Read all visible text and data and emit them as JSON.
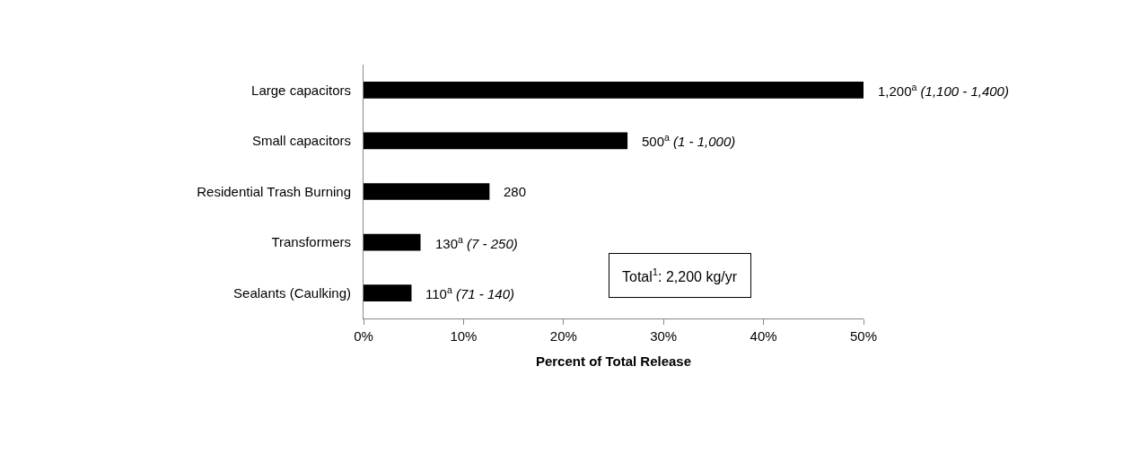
{
  "chart_data": {
    "type": "bar",
    "orientation": "horizontal",
    "categories": [
      "Large capacitors",
      "Small capacitors",
      "Residential Trash Burning",
      "Transformers",
      "Sealants (Caulking)"
    ],
    "values": [
      50.0,
      26.4,
      12.6,
      5.7,
      4.8
    ],
    "color": "#000000",
    "xlabel": "Percent of Total Release",
    "xlim": [
      0,
      50
    ],
    "xticks": [
      {
        "value": 0,
        "label": "0%"
      },
      {
        "value": 10,
        "label": "10%"
      },
      {
        "value": 20,
        "label": "20%"
      },
      {
        "value": 30,
        "label": "30%"
      },
      {
        "value": 40,
        "label": "40%"
      },
      {
        "value": 50,
        "label": "50%"
      }
    ],
    "legend": false,
    "annotations": [
      {
        "text": "1,200$^{a}$ (1,100 - 1,400)",
        "x": 50.0,
        "y": "Large capacitors"
      },
      {
        "text": "500$^{a}$ (1 - 1,000)",
        "x": 26.4,
        "y": "Small capacitors"
      },
      {
        "text": "280",
        "x": 12.6,
        "y": "Residential Trash Burning"
      },
      {
        "text": "130$^{a}$ (7 - 250)",
        "x": 5.7,
        "y": "Transformers"
      },
      {
        "text": "110$^{a}$ (71 - 140)",
        "x": 4.8,
        "y": "Sealants (Caulking)"
      },
      "Total$^{1}$: 2,200 kg/yr"
    ]
  }
}
